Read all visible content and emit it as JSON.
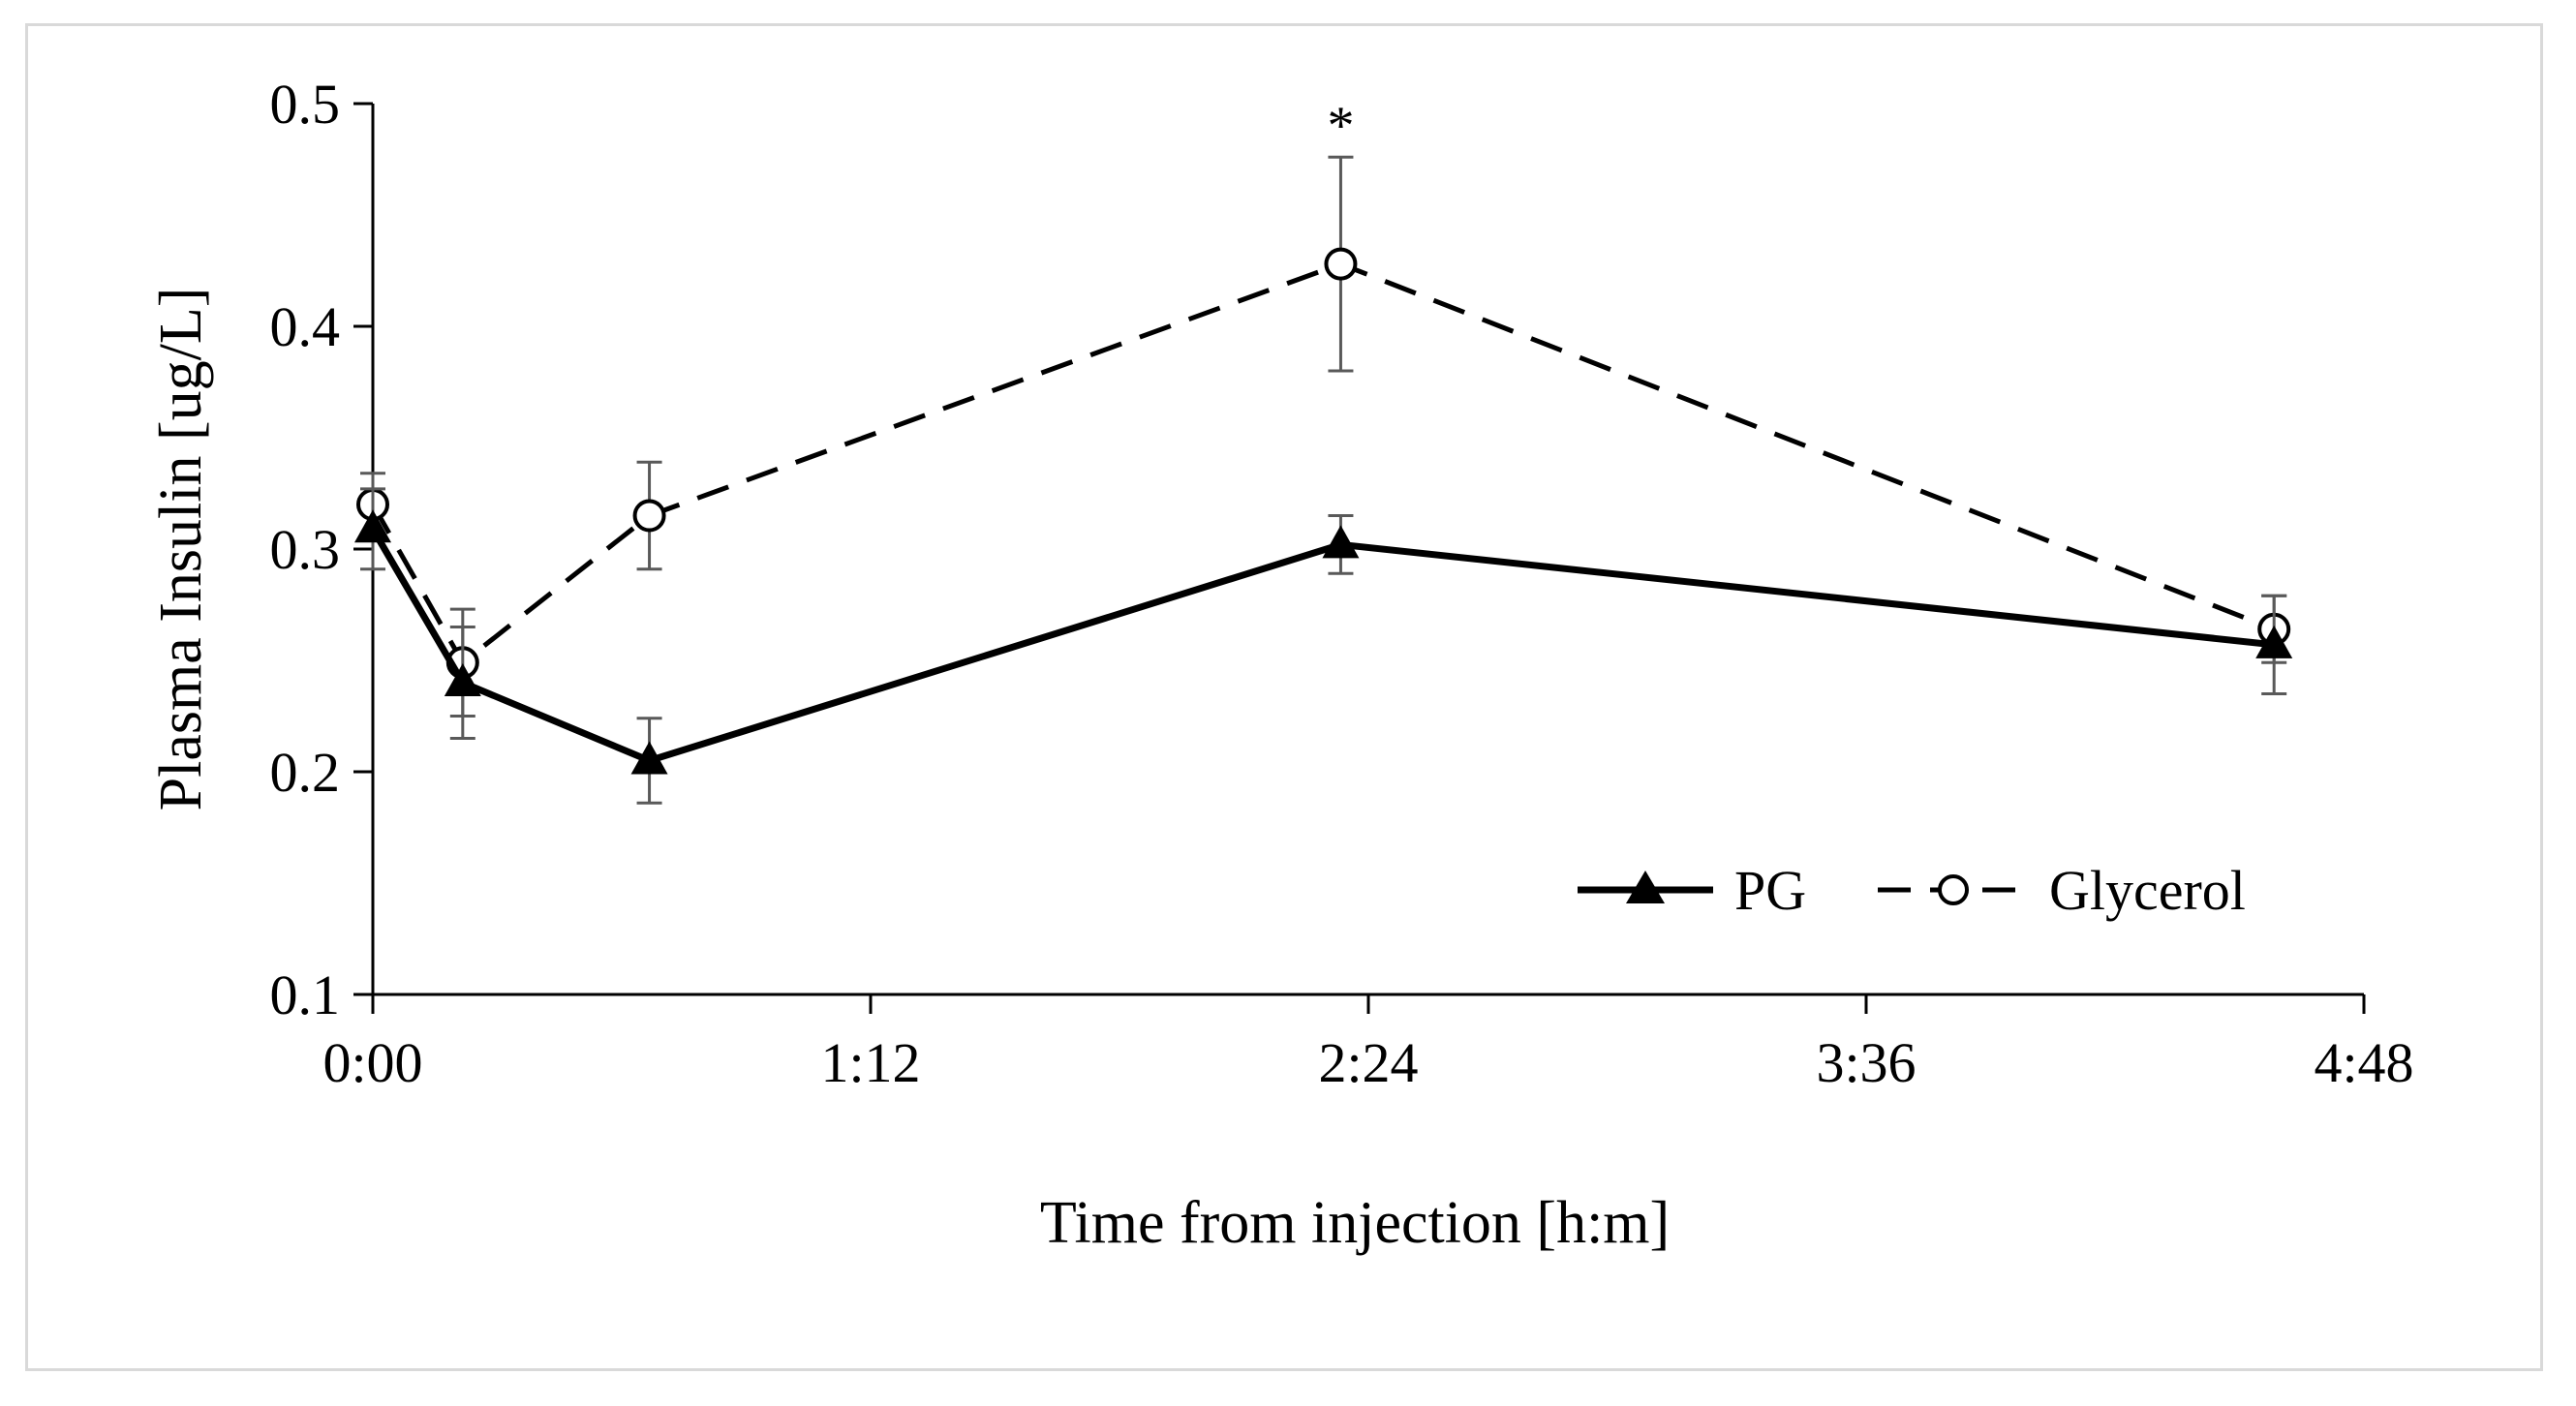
{
  "chart_data": {
    "type": "line",
    "title": "",
    "xlabel": "Time from injection [h:m]",
    "ylabel": "Plasma Insulin [ug/L]",
    "xlim_minutes": [
      0,
      288
    ],
    "ylim": [
      0.1,
      0.5
    ],
    "x_ticks": [
      {
        "value": 0,
        "label": "0:00"
      },
      {
        "value": 72,
        "label": "1:12"
      },
      {
        "value": 144,
        "label": "2:24"
      },
      {
        "value": 216,
        "label": "3:36"
      },
      {
        "value": 288,
        "label": "4:48"
      }
    ],
    "y_ticks": [
      {
        "value": 0.1,
        "label": "0.1"
      },
      {
        "value": 0.2,
        "label": "0.2"
      },
      {
        "value": 0.3,
        "label": "0.3"
      },
      {
        "value": 0.4,
        "label": "0.4"
      },
      {
        "value": 0.5,
        "label": "0.5"
      }
    ],
    "grid": false,
    "legend_position": "bottom-right",
    "series": [
      {
        "name": "PG",
        "marker": "filled-triangle",
        "line_style": "solid",
        "x_minutes": [
          0,
          13,
          40,
          140,
          275
        ],
        "values": [
          0.309,
          0.24,
          0.205,
          0.302,
          0.257
        ],
        "errors": [
          0.018,
          0.025,
          0.019,
          0.013,
          0.022
        ]
      },
      {
        "name": "Glycerol",
        "marker": "open-circle",
        "line_style": "dashed",
        "x_minutes": [
          0,
          13,
          40,
          140,
          275
        ],
        "values": [
          0.32,
          0.249,
          0.315,
          0.428,
          0.264
        ],
        "errors": [
          0.014,
          0.024,
          0.024,
          0.048,
          0.015
        ]
      }
    ],
    "annotations": [
      {
        "text": "*",
        "x_minutes": 140,
        "series": "Glycerol"
      }
    ]
  }
}
